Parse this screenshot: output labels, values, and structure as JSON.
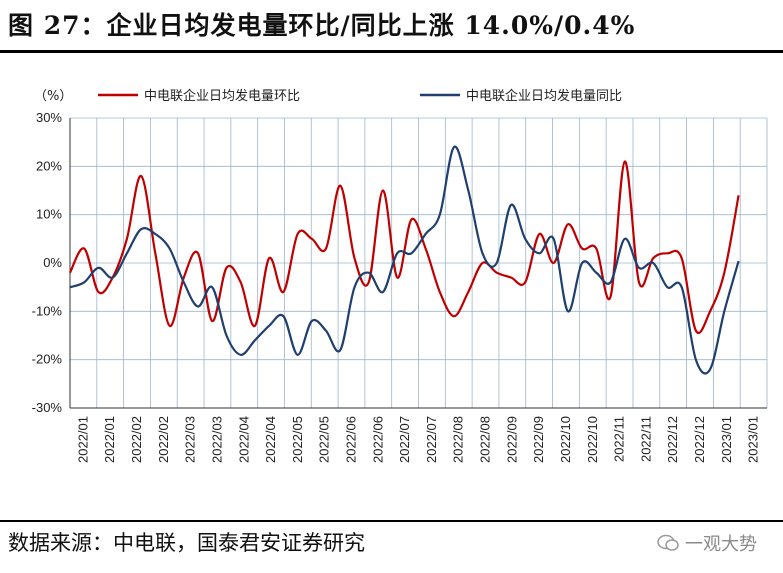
{
  "title": "图 27：企业日均发电量环比/同比上涨 14.0%/0.4%",
  "source": "数据来源：中电联，国泰君安证券研究",
  "watermark": "一观大势",
  "colors": {
    "series_1": "#c00000",
    "series_2": "#1f3f6e",
    "grid": "#9fb4cc",
    "plot_bg": "#ffffff"
  },
  "chart_data": {
    "type": "line",
    "unit_label": "（%）",
    "ylim": [
      -30,
      30
    ],
    "y_ticks": [
      -30,
      -20,
      -10,
      0,
      10,
      20,
      30
    ],
    "y_tick_labels": [
      "-30%",
      "-20%",
      "-10%",
      "0%",
      "10%",
      "20%",
      "30%"
    ],
    "x_tick_labels": [
      "2022/01",
      "2022/01",
      "2022/02",
      "2022/02",
      "2022/03",
      "2022/03",
      "2022/04",
      "2022/04",
      "2022/05",
      "2022/05",
      "2022/06",
      "2022/06",
      "2022/07",
      "2022/07",
      "2022/08",
      "2022/08",
      "2022/09",
      "2022/09",
      "2022/10",
      "2022/10",
      "2022/11",
      "2022/11",
      "2022/12",
      "2022/12",
      "2023/01",
      "2023/01"
    ],
    "x_range": [
      0,
      49
    ],
    "series": [
      {
        "name": "中电联企业日均发电量环比",
        "points": [
          [
            0,
            -2
          ],
          [
            1,
            3
          ],
          [
            2,
            -6
          ],
          [
            3,
            -3
          ],
          [
            4,
            5
          ],
          [
            5,
            18
          ],
          [
            6,
            2
          ],
          [
            7,
            -13
          ],
          [
            8,
            -3
          ],
          [
            9,
            2
          ],
          [
            10,
            -12
          ],
          [
            11,
            -1
          ],
          [
            12,
            -4
          ],
          [
            13,
            -13
          ],
          [
            14,
            1
          ],
          [
            15,
            -6
          ],
          [
            16,
            6
          ],
          [
            17,
            5
          ],
          [
            18,
            3
          ],
          [
            19,
            16
          ],
          [
            20,
            1
          ],
          [
            21,
            -4
          ],
          [
            22,
            15
          ],
          [
            23,
            -3
          ],
          [
            24,
            9
          ],
          [
            25,
            3
          ],
          [
            26,
            -6
          ],
          [
            27,
            -11
          ],
          [
            28,
            -6
          ],
          [
            29,
            0
          ],
          [
            30,
            -2
          ],
          [
            31,
            -3
          ],
          [
            32,
            -4
          ],
          [
            33,
            6
          ],
          [
            34,
            0
          ],
          [
            35,
            8
          ],
          [
            36,
            3
          ],
          [
            37,
            3
          ],
          [
            38,
            -7
          ],
          [
            39,
            21
          ],
          [
            40,
            -4
          ],
          [
            41,
            1
          ],
          [
            42,
            2
          ],
          [
            43,
            1
          ],
          [
            44,
            -14
          ],
          [
            45,
            -10
          ],
          [
            46,
            -2
          ],
          [
            47,
            14
          ]
        ]
      },
      {
        "name": "中电联企业日均发电量同比",
        "points": [
          [
            0,
            -5
          ],
          [
            1,
            -4
          ],
          [
            2,
            -1
          ],
          [
            3,
            -3
          ],
          [
            4,
            2
          ],
          [
            5,
            7
          ],
          [
            6,
            6
          ],
          [
            7,
            3
          ],
          [
            8,
            -4
          ],
          [
            9,
            -9
          ],
          [
            10,
            -5
          ],
          [
            11,
            -15
          ],
          [
            12,
            -19
          ],
          [
            13,
            -16
          ],
          [
            14,
            -13
          ],
          [
            15,
            -11
          ],
          [
            16,
            -19
          ],
          [
            17,
            -12
          ],
          [
            18,
            -14
          ],
          [
            19,
            -18
          ],
          [
            20,
            -5
          ],
          [
            21,
            -2
          ],
          [
            22,
            -6
          ],
          [
            23,
            2
          ],
          [
            24,
            2
          ],
          [
            25,
            6
          ],
          [
            26,
            10
          ],
          [
            27,
            24
          ],
          [
            28,
            15
          ],
          [
            29,
            2
          ],
          [
            30,
            0
          ],
          [
            31,
            12
          ],
          [
            32,
            5
          ],
          [
            33,
            2
          ],
          [
            34,
            5
          ],
          [
            35,
            -10
          ],
          [
            36,
            0
          ],
          [
            37,
            -2
          ],
          [
            38,
            -4
          ],
          [
            39,
            5
          ],
          [
            40,
            -1
          ],
          [
            41,
            0
          ],
          [
            42,
            -5
          ],
          [
            43,
            -5
          ],
          [
            44,
            -20
          ],
          [
            45,
            -22
          ],
          [
            46,
            -10
          ],
          [
            47,
            0.4
          ]
        ]
      }
    ]
  }
}
